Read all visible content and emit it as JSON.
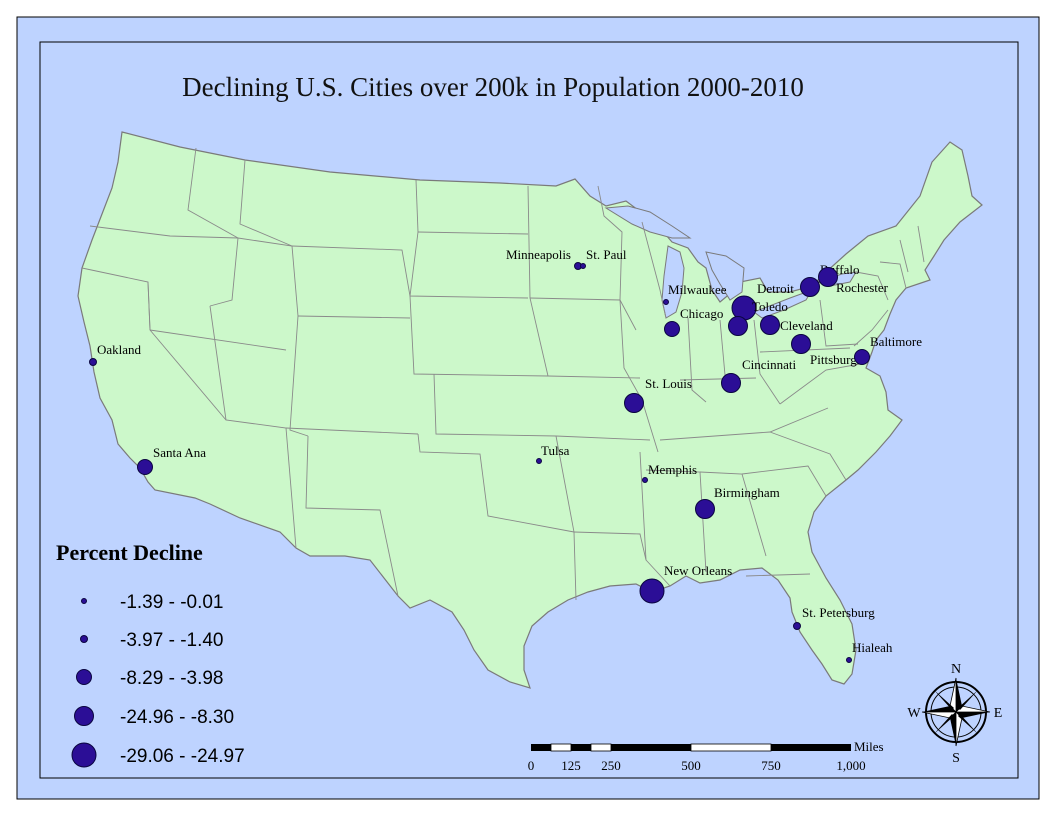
{
  "map": {
    "title": "Declining U.S. Cities over 200k in Population 2000-2010",
    "colors": {
      "ocean": "#BED3FF",
      "land": "#CCF8CA",
      "state_border": "#858585",
      "symbol_fill": "#2B0E96",
      "symbol_stroke": "#0A0540",
      "water_lake": "#BED3FF",
      "frame": "#000000"
    }
  },
  "cities": [
    {
      "name": "Minneapolis",
      "decline_class": 2
    },
    {
      "name": "St. Paul",
      "decline_class": 1
    },
    {
      "name": "Milwaukee",
      "decline_class": 1
    },
    {
      "name": "Chicago",
      "decline_class": 3
    },
    {
      "name": "Detroit",
      "decline_class": 5
    },
    {
      "name": "Toledo",
      "decline_class": 4
    },
    {
      "name": "Cleveland",
      "decline_class": 4
    },
    {
      "name": "Buffalo",
      "decline_class": 4
    },
    {
      "name": "Rochester",
      "decline_class": 4
    },
    {
      "name": "Pittsburgh",
      "decline_class": 4
    },
    {
      "name": "Baltimore",
      "decline_class": 3
    },
    {
      "name": "Cincinnati",
      "decline_class": 4
    },
    {
      "name": "St. Louis",
      "decline_class": 4
    },
    {
      "name": "Memphis",
      "decline_class": 1
    },
    {
      "name": "Birmingham",
      "decline_class": 4
    },
    {
      "name": "Tulsa",
      "decline_class": 1
    },
    {
      "name": "New Orleans",
      "decline_class": 5
    },
    {
      "name": "St. Petersburg",
      "decline_class": 2
    },
    {
      "name": "Hialeah",
      "decline_class": 1
    },
    {
      "name": "Oakland",
      "decline_class": 2
    },
    {
      "name": "Santa Ana",
      "decline_class": 3
    }
  ],
  "legend": {
    "title": "Percent Decline",
    "classes": [
      {
        "label": "-1.39 - -0.01",
        "class": 1
      },
      {
        "label": "-3.97 - -1.40",
        "class": 2
      },
      {
        "label": "-8.29 - -3.98",
        "class": 3
      },
      {
        "label": "-24.96 - -8.30",
        "class": 4
      },
      {
        "label": "-29.06 - -24.97",
        "class": 5
      }
    ]
  },
  "scale_bar": {
    "unit": "Miles",
    "ticks": [
      "0",
      "125",
      "250",
      "500",
      "750",
      "1,000"
    ]
  },
  "north_arrow": {
    "icon": "compass-rose-icon",
    "n": "N",
    "s": "S",
    "e": "E",
    "w": "W"
  }
}
